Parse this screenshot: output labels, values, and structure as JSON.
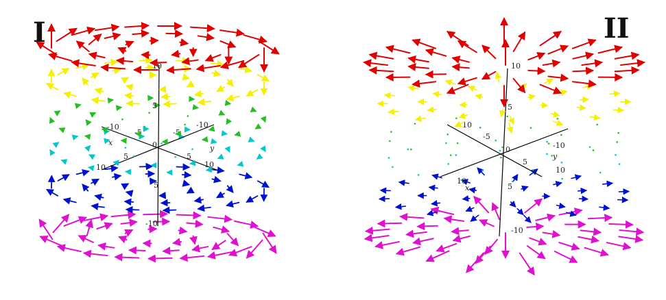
{
  "panels": [
    {
      "label": "I",
      "field": "rotational",
      "axis_names": {
        "x": "x",
        "y": "y"
      },
      "ticks": {
        "z": [
          "10",
          "5",
          "0",
          "5",
          "-10"
        ],
        "x": [
          "-10",
          "-5",
          "5",
          "10"
        ],
        "y": [
          "-10",
          "-5",
          "5",
          "10"
        ]
      }
    },
    {
      "label": "II",
      "field": "radial",
      "axis_names": {
        "x": "x",
        "y": "y"
      },
      "ticks": {
        "z": [
          "10",
          "5",
          "0",
          "5",
          "-10"
        ],
        "x": [
          "10",
          "-5",
          "10"
        ],
        "y": [
          "-10",
          "5",
          "10"
        ]
      }
    }
  ],
  "colors": {
    "level_colors": [
      "#e00000",
      "#f5f000",
      "#22c020",
      "#00c8d0",
      "#0010d0",
      "#e010d0"
    ],
    "axis": "#000000"
  }
}
